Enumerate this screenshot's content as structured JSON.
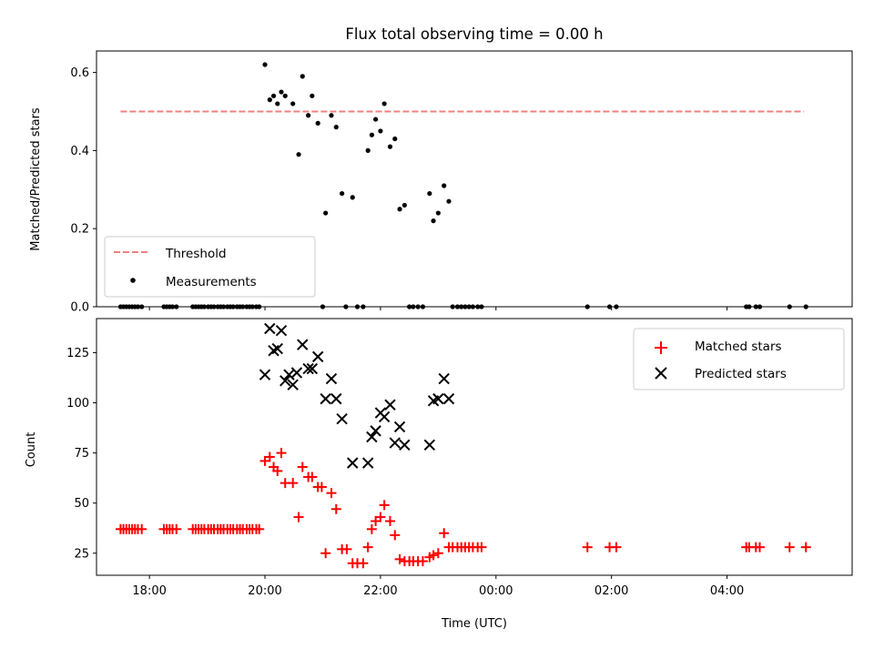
{
  "title": "Flux total observing time = 0.00 h",
  "colors": {
    "threshold": "#f08080",
    "measurements": "#000000",
    "matched": "#ff0000",
    "predicted": "#000000"
  },
  "chart_data": [
    {
      "type": "scatter",
      "ylabel": "Matched/Predicted stars",
      "ylim": [
        0,
        0.655
      ],
      "yticks": [
        0,
        0.2,
        0.4,
        0.6
      ],
      "ytick_labels": [
        "0.0",
        "0.2",
        "0.4",
        "0.6"
      ],
      "xlim": [
        "17:05",
        "30:10"
      ],
      "xticks": [
        "18:00",
        "20:00",
        "22:00",
        "24:00",
        "26:00",
        "28:00"
      ],
      "legend": {
        "placement": "lower-left",
        "entries": [
          "Threshold",
          "Measurements"
        ]
      },
      "threshold": {
        "name": "Threshold",
        "y": 0.5,
        "x_range": [
          "17:30",
          "29:20"
        ]
      },
      "series": [
        {
          "name": "Measurements",
          "marker": "dot",
          "points": [
            [
              "17:30",
              0
            ],
            [
              "17:33",
              0
            ],
            [
              "17:36",
              0
            ],
            [
              "17:39",
              0
            ],
            [
              "17:42",
              0
            ],
            [
              "17:45",
              0
            ],
            [
              "17:48",
              0
            ],
            [
              "17:52",
              0
            ],
            [
              "18:15",
              0
            ],
            [
              "18:18",
              0
            ],
            [
              "18:21",
              0
            ],
            [
              "18:24",
              0
            ],
            [
              "18:28",
              0
            ],
            [
              "18:45",
              0
            ],
            [
              "18:48",
              0
            ],
            [
              "18:51",
              0
            ],
            [
              "18:54",
              0
            ],
            [
              "18:57",
              0
            ],
            [
              "19:01",
              0
            ],
            [
              "19:04",
              0
            ],
            [
              "19:07",
              0
            ],
            [
              "19:11",
              0
            ],
            [
              "19:14",
              0
            ],
            [
              "19:17",
              0
            ],
            [
              "19:21",
              0
            ],
            [
              "19:24",
              0
            ],
            [
              "19:27",
              0
            ],
            [
              "19:31",
              0
            ],
            [
              "19:34",
              0
            ],
            [
              "19:37",
              0
            ],
            [
              "19:41",
              0
            ],
            [
              "19:44",
              0
            ],
            [
              "19:47",
              0
            ],
            [
              "19:51",
              0
            ],
            [
              "19:54",
              0
            ],
            [
              "20:00",
              0.62
            ],
            [
              "20:05",
              0.53
            ],
            [
              "20:09",
              0.54
            ],
            [
              "20:13",
              0.52
            ],
            [
              "20:17",
              0.55
            ],
            [
              "20:21",
              0.54
            ],
            [
              "20:29",
              0.52
            ],
            [
              "20:35",
              0.39
            ],
            [
              "20:39",
              0.59
            ],
            [
              "20:45",
              0.49
            ],
            [
              "20:49",
              0.54
            ],
            [
              "20:55",
              0.47
            ],
            [
              "21:03",
              0.24
            ],
            [
              "21:09",
              0.49
            ],
            [
              "21:14",
              0.46
            ],
            [
              "21:20",
              0.29
            ],
            [
              "21:31",
              0.28
            ],
            [
              "21:47",
              0.4
            ],
            [
              "21:51",
              0.44
            ],
            [
              "21:55",
              0.48
            ],
            [
              "22:00",
              0.45
            ],
            [
              "22:04",
              0.52
            ],
            [
              "22:10",
              0.41
            ],
            [
              "22:15",
              0.43
            ],
            [
              "22:20",
              0.25
            ],
            [
              "22:25",
              0.26
            ],
            [
              "22:51",
              0.29
            ],
            [
              "22:55",
              0.22
            ],
            [
              "23:00",
              0.24
            ],
            [
              "23:06",
              0.31
            ],
            [
              "23:11",
              0.27
            ],
            [
              "21:00",
              0
            ],
            [
              "21:24",
              0
            ],
            [
              "21:36",
              0
            ],
            [
              "21:42",
              0
            ],
            [
              "22:30",
              0
            ],
            [
              "22:34",
              0
            ],
            [
              "22:39",
              0
            ],
            [
              "22:44",
              0
            ],
            [
              "23:15",
              0
            ],
            [
              "23:20",
              0
            ],
            [
              "23:24",
              0
            ],
            [
              "23:28",
              0
            ],
            [
              "23:32",
              0
            ],
            [
              "23:36",
              0
            ],
            [
              "23:41",
              0
            ],
            [
              "23:45",
              0
            ],
            [
              "25:35",
              0
            ],
            [
              "25:58",
              0
            ],
            [
              "26:05",
              0
            ],
            [
              "28:20",
              0
            ],
            [
              "28:23",
              0
            ],
            [
              "28:30",
              0
            ],
            [
              "28:34",
              0
            ],
            [
              "29:05",
              0
            ],
            [
              "29:22",
              0
            ]
          ]
        }
      ]
    },
    {
      "type": "scatter",
      "xlabel": "Time (UTC)",
      "ylabel": "Count",
      "ylim": [
        14,
        142
      ],
      "yticks": [
        25,
        50,
        75,
        100,
        125
      ],
      "ytick_labels": [
        "25",
        "50",
        "75",
        "100",
        "125"
      ],
      "xlim": [
        "17:05",
        "30:10"
      ],
      "xticks": [
        "18:00",
        "20:00",
        "22:00",
        "24:00",
        "26:00",
        "28:00"
      ],
      "xtick_labels": [
        "18:00",
        "20:00",
        "22:00",
        "00:00",
        "02:00",
        "04:00"
      ],
      "legend": {
        "placement": "top-right",
        "entries": [
          "Matched stars",
          "Predicted stars"
        ]
      },
      "series": [
        {
          "name": "Matched stars",
          "marker": "plus",
          "points": [
            [
              "17:30",
              37
            ],
            [
              "17:33",
              37
            ],
            [
              "17:36",
              37
            ],
            [
              "17:39",
              37
            ],
            [
              "17:42",
              37
            ],
            [
              "17:45",
              37
            ],
            [
              "17:48",
              37
            ],
            [
              "17:52",
              37
            ],
            [
              "18:15",
              37
            ],
            [
              "18:18",
              37
            ],
            [
              "18:21",
              37
            ],
            [
              "18:24",
              37
            ],
            [
              "18:28",
              37
            ],
            [
              "18:45",
              37
            ],
            [
              "18:48",
              37
            ],
            [
              "18:51",
              37
            ],
            [
              "18:54",
              37
            ],
            [
              "18:57",
              37
            ],
            [
              "19:01",
              37
            ],
            [
              "19:04",
              37
            ],
            [
              "19:07",
              37
            ],
            [
              "19:11",
              37
            ],
            [
              "19:14",
              37
            ],
            [
              "19:17",
              37
            ],
            [
              "19:21",
              37
            ],
            [
              "19:24",
              37
            ],
            [
              "19:27",
              37
            ],
            [
              "19:31",
              37
            ],
            [
              "19:34",
              37
            ],
            [
              "19:37",
              37
            ],
            [
              "19:41",
              37
            ],
            [
              "19:44",
              37
            ],
            [
              "19:47",
              37
            ],
            [
              "19:51",
              37
            ],
            [
              "19:54",
              37
            ],
            [
              "20:00",
              71
            ],
            [
              "20:05",
              73
            ],
            [
              "20:09",
              68
            ],
            [
              "20:13",
              66
            ],
            [
              "20:17",
              75
            ],
            [
              "20:21",
              60
            ],
            [
              "20:29",
              60
            ],
            [
              "20:35",
              43
            ],
            [
              "20:39",
              68
            ],
            [
              "20:45",
              63
            ],
            [
              "20:49",
              63
            ],
            [
              "20:55",
              58
            ],
            [
              "20:59",
              58
            ],
            [
              "21:03",
              25
            ],
            [
              "21:09",
              55
            ],
            [
              "21:14",
              47
            ],
            [
              "21:20",
              27
            ],
            [
              "21:25",
              27
            ],
            [
              "21:31",
              20
            ],
            [
              "21:36",
              20
            ],
            [
              "21:42",
              20
            ],
            [
              "21:47",
              28
            ],
            [
              "21:51",
              37
            ],
            [
              "21:55",
              41
            ],
            [
              "22:00",
              43
            ],
            [
              "22:04",
              49
            ],
            [
              "22:10",
              41
            ],
            [
              "22:15",
              34
            ],
            [
              "22:20",
              22
            ],
            [
              "22:25",
              21
            ],
            [
              "22:30",
              21
            ],
            [
              "22:34",
              21
            ],
            [
              "22:39",
              21
            ],
            [
              "22:44",
              21
            ],
            [
              "22:51",
              23
            ],
            [
              "22:55",
              24
            ],
            [
              "23:00",
              25
            ],
            [
              "23:06",
              35
            ],
            [
              "23:11",
              28
            ],
            [
              "23:15",
              28
            ],
            [
              "23:20",
              28
            ],
            [
              "23:24",
              28
            ],
            [
              "23:28",
              28
            ],
            [
              "23:32",
              28
            ],
            [
              "23:36",
              28
            ],
            [
              "23:41",
              28
            ],
            [
              "23:45",
              28
            ],
            [
              "25:35",
              28
            ],
            [
              "25:58",
              28
            ],
            [
              "26:05",
              28
            ],
            [
              "28:20",
              28
            ],
            [
              "28:23",
              28
            ],
            [
              "28:30",
              28
            ],
            [
              "28:34",
              28
            ],
            [
              "29:05",
              28
            ],
            [
              "29:22",
              28
            ]
          ]
        },
        {
          "name": "Predicted stars",
          "marker": "x",
          "points": [
            [
              "20:00",
              114
            ],
            [
              "20:05",
              137
            ],
            [
              "20:09",
              126
            ],
            [
              "20:13",
              127
            ],
            [
              "20:17",
              136
            ],
            [
              "20:21",
              111
            ],
            [
              "20:25",
              114
            ],
            [
              "20:29",
              109
            ],
            [
              "20:33",
              115
            ],
            [
              "20:39",
              129
            ],
            [
              "20:45",
              117
            ],
            [
              "20:49",
              117
            ],
            [
              "20:55",
              123
            ],
            [
              "21:03",
              102
            ],
            [
              "21:09",
              112
            ],
            [
              "21:14",
              102
            ],
            [
              "21:20",
              92
            ],
            [
              "21:31",
              70
            ],
            [
              "21:47",
              70
            ],
            [
              "21:51",
              83
            ],
            [
              "21:55",
              86
            ],
            [
              "22:00",
              95
            ],
            [
              "22:04",
              93
            ],
            [
              "22:10",
              99
            ],
            [
              "22:15",
              80
            ],
            [
              "22:20",
              88
            ],
            [
              "22:25",
              79
            ],
            [
              "22:51",
              79
            ],
            [
              "22:55",
              101
            ],
            [
              "23:00",
              102
            ],
            [
              "23:06",
              112
            ],
            [
              "23:11",
              102
            ]
          ]
        }
      ]
    }
  ]
}
